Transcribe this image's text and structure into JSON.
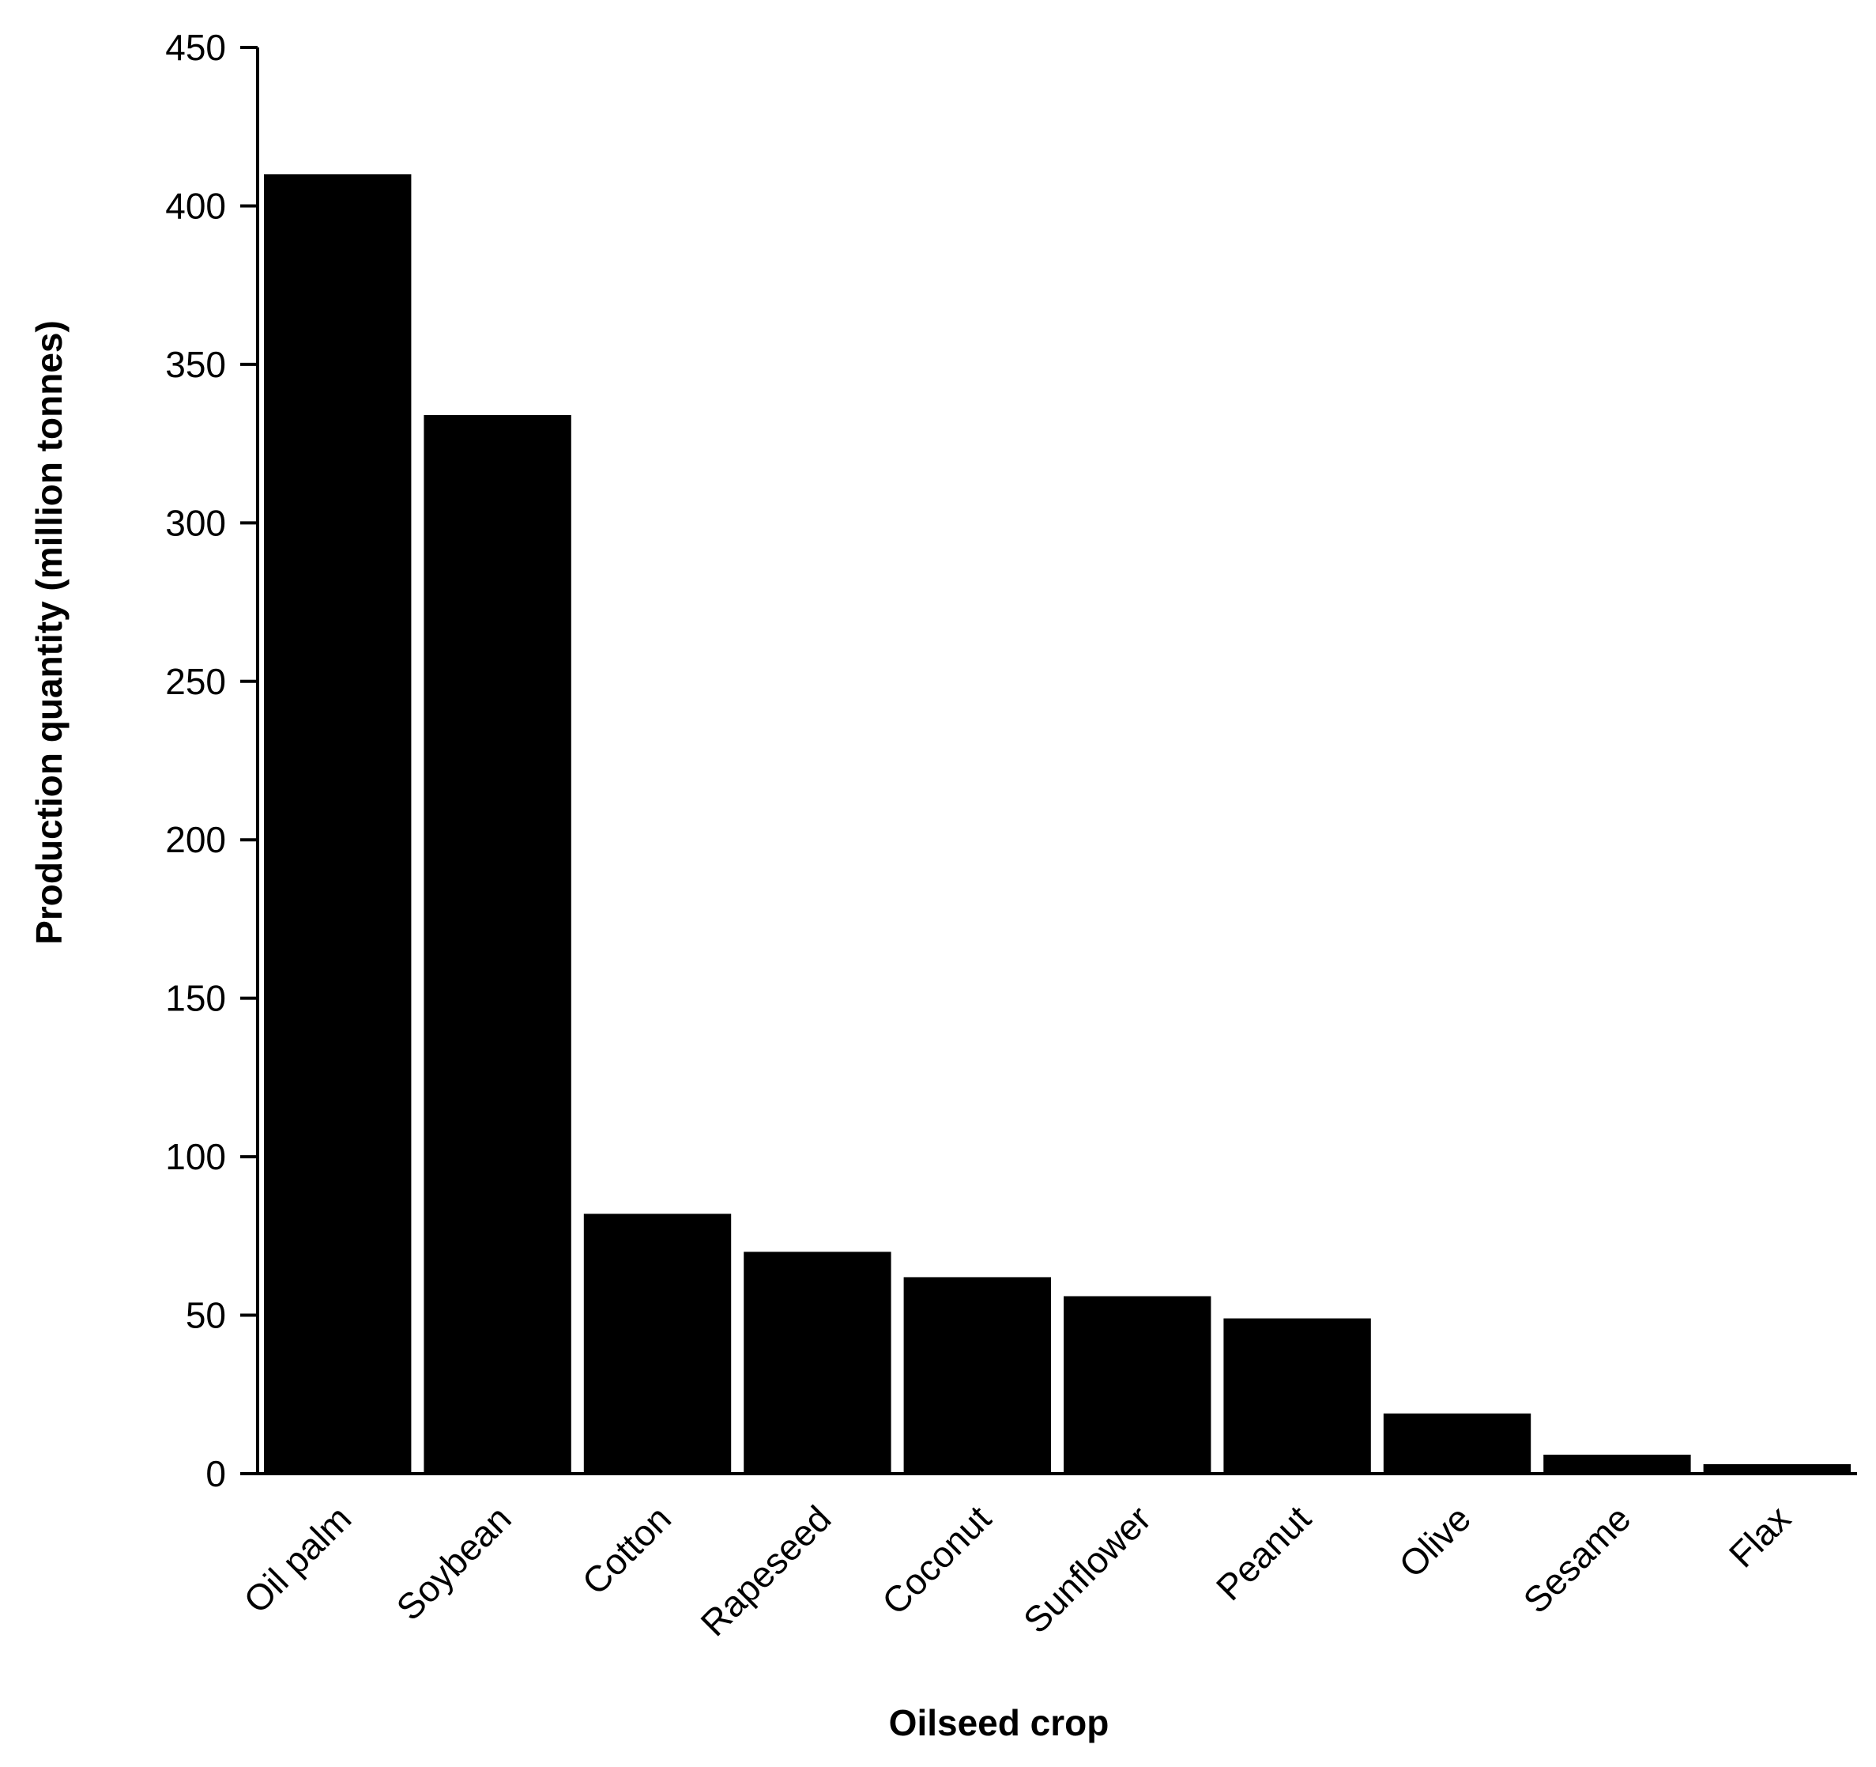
{
  "chart_data": {
    "type": "bar",
    "title": "",
    "xlabel": "Oilseed crop",
    "ylabel": "Production quantity (million tonnes)",
    "categories": [
      "Oil palm",
      "Soybean",
      "Cotton",
      "Rapeseed",
      "Coconut",
      "Sunflower",
      "Peanut",
      "Olive",
      "Sesame",
      "Flax"
    ],
    "values": [
      410,
      334,
      82,
      70,
      62,
      56,
      49,
      19,
      6,
      3
    ],
    "ylim": [
      0,
      450
    ],
    "yticks": [
      0,
      50,
      100,
      150,
      200,
      250,
      300,
      350,
      400,
      450
    ],
    "grid": false,
    "legend": "none",
    "bar_color": "#000000",
    "axis_color": "#000000"
  }
}
